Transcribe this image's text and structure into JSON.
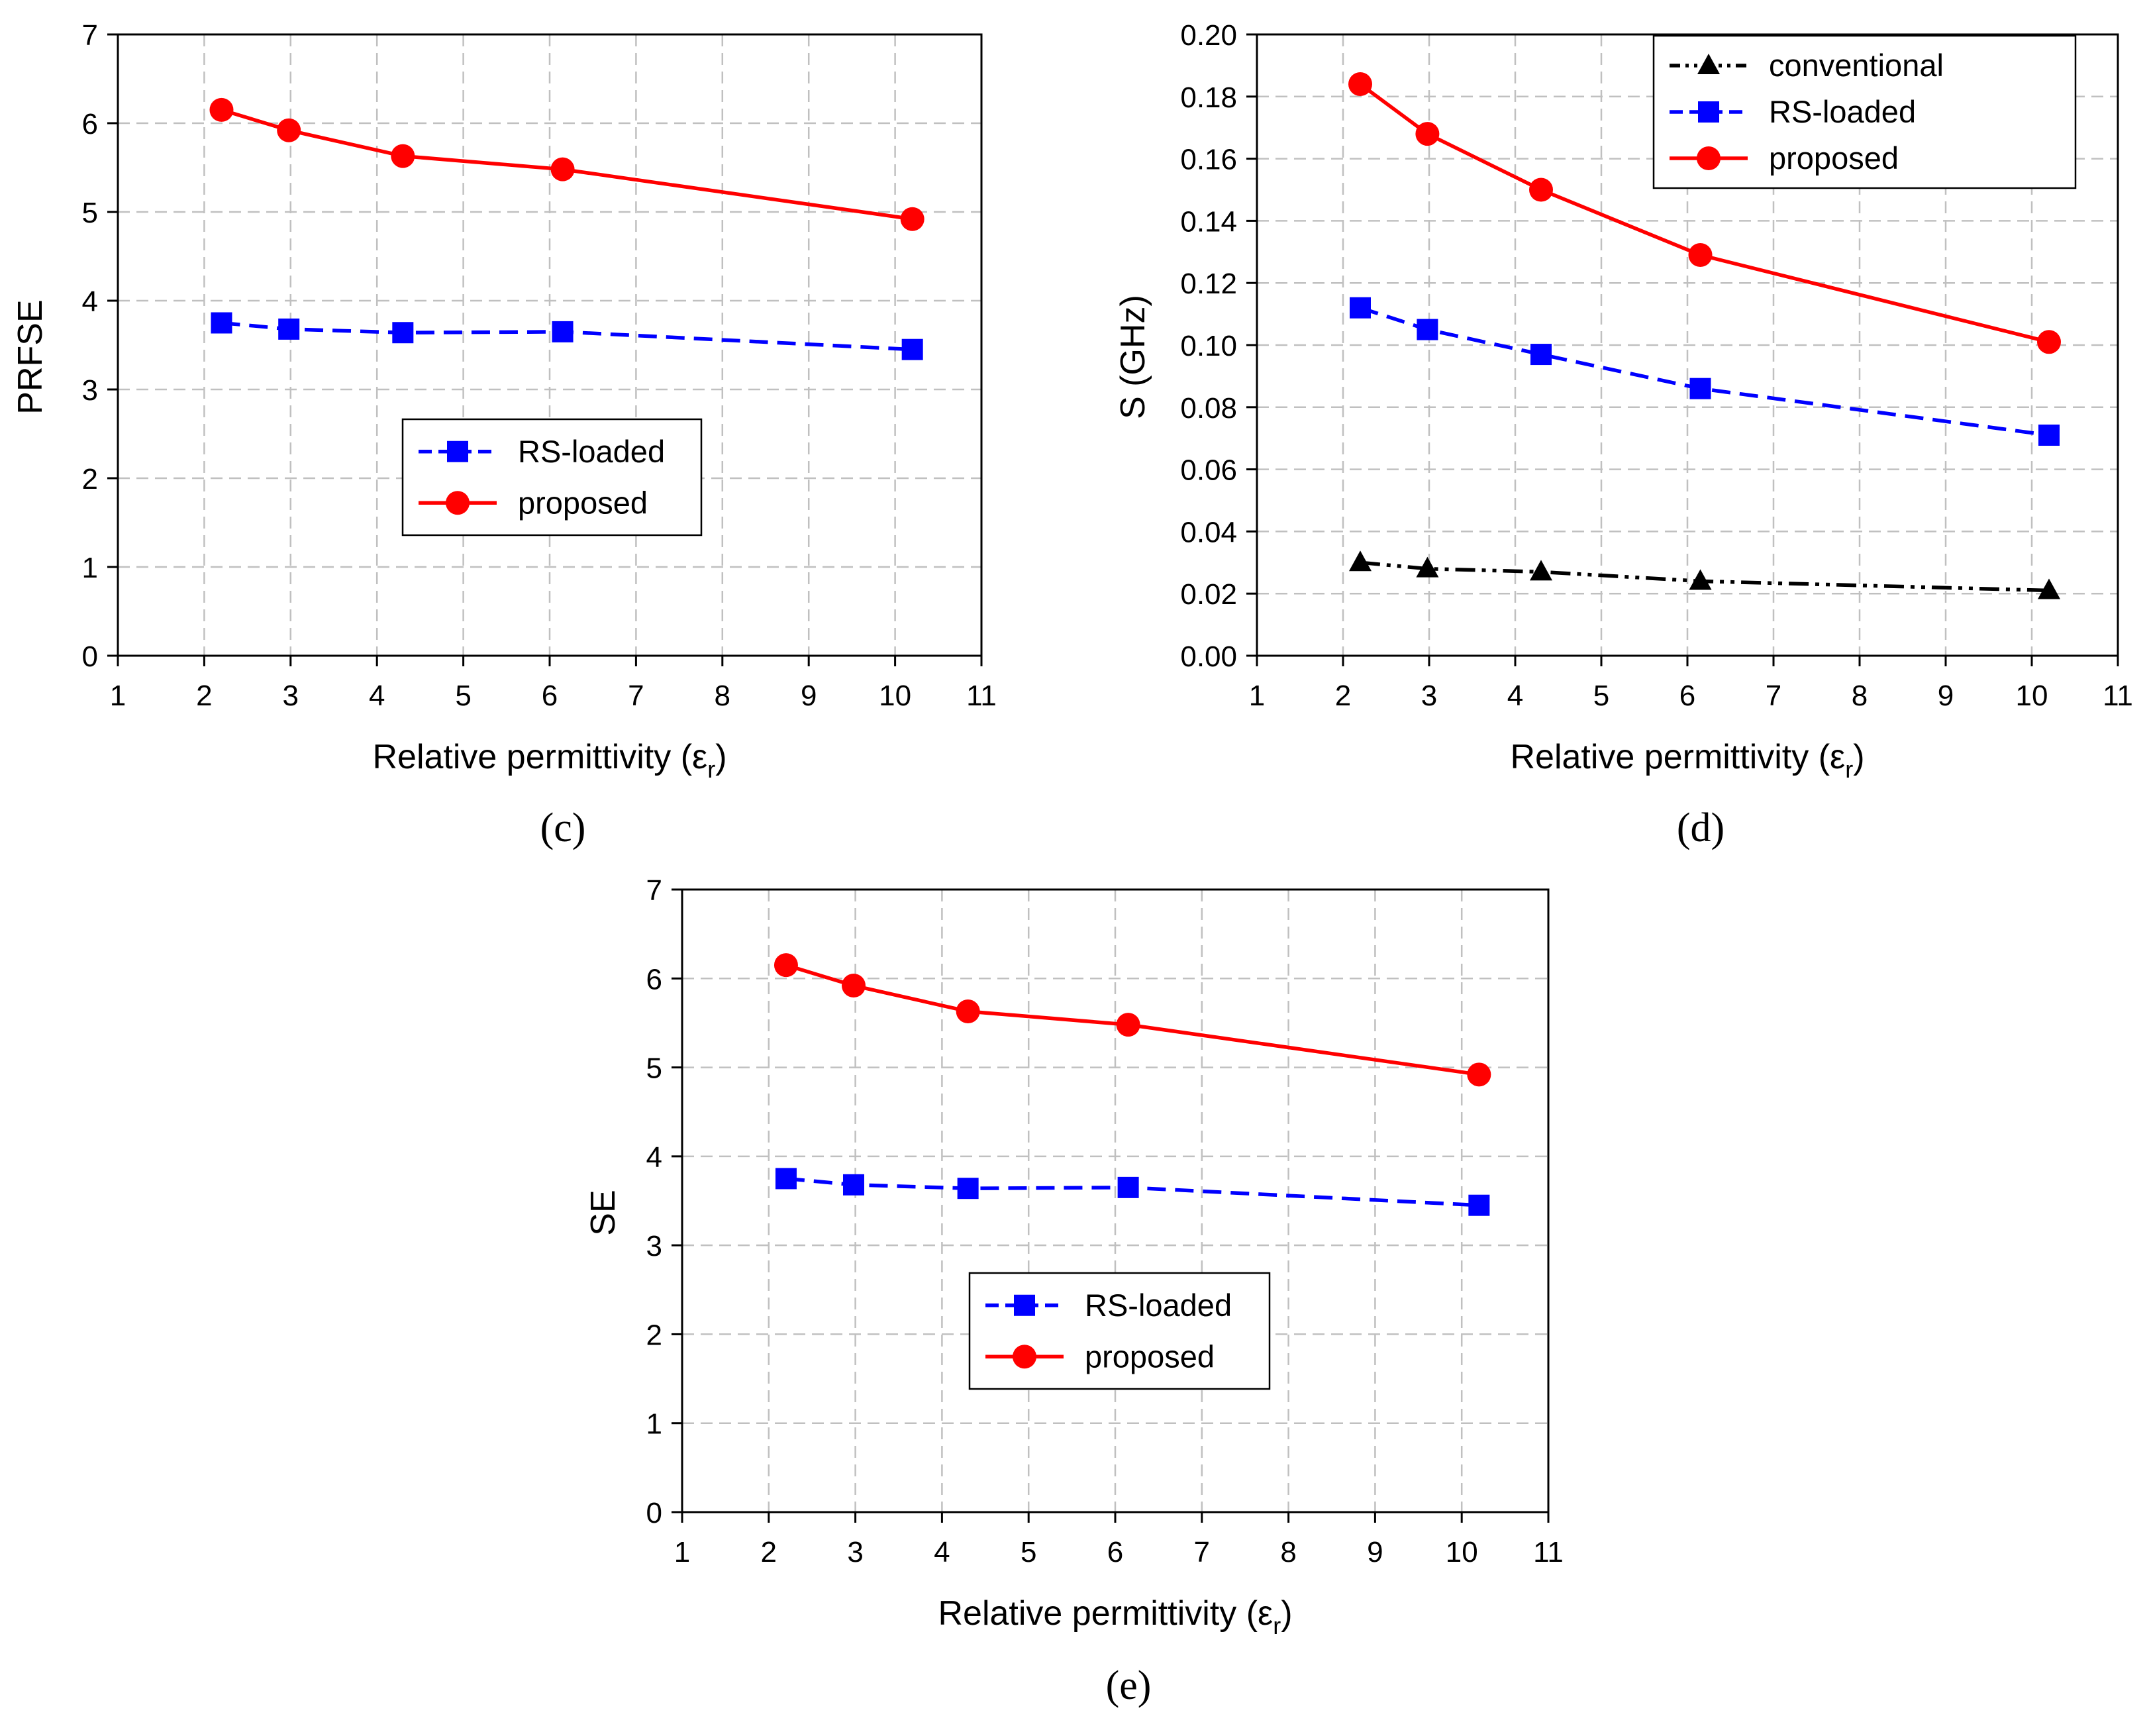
{
  "colors": {
    "rs_loaded": "#0000ff",
    "proposed": "#ff0000",
    "conventional": "#000000",
    "grid": "#c0c0c0"
  },
  "chart_data": [
    {
      "panel": "c",
      "panel_label": "(c)",
      "type": "line",
      "xlabel": "Relative permittivity (εr)",
      "xlabel_main": "Relative permittivity (ε",
      "xlabel_sub": "r",
      "xlabel_close": ")",
      "ylabel": "PRFSE",
      "xlim": [
        1,
        11
      ],
      "ylim": [
        0,
        7
      ],
      "xticks": [
        "1",
        "2",
        "3",
        "4",
        "5",
        "6",
        "7",
        "8",
        "9",
        "10",
        "11"
      ],
      "yticks": [
        "0",
        "1",
        "2",
        "3",
        "4",
        "5",
        "6",
        "7"
      ],
      "grid": true,
      "legend_position": "center",
      "series": [
        {
          "name": "RS-loaded",
          "style": "dashed",
          "marker": "square",
          "color": "#0000ff",
          "x": [
            2.2,
            2.98,
            4.3,
            6.15,
            10.2
          ],
          "y": [
            3.75,
            3.68,
            3.64,
            3.65,
            3.45
          ]
        },
        {
          "name": "proposed",
          "style": "solid",
          "marker": "circle",
          "color": "#ff0000",
          "x": [
            2.2,
            2.98,
            4.3,
            6.15,
            10.2
          ],
          "y": [
            6.15,
            5.92,
            5.63,
            5.48,
            4.92
          ]
        }
      ]
    },
    {
      "panel": "d",
      "panel_label": "(d)",
      "type": "line",
      "xlabel": "Relative permittivity (εr)",
      "xlabel_main": "Relative permittivity (ε",
      "xlabel_sub": "r",
      "xlabel_close": ")",
      "ylabel": "S (GHz)",
      "xlim": [
        1,
        11
      ],
      "ylim": [
        0,
        0.2
      ],
      "xticks": [
        "1",
        "2",
        "3",
        "4",
        "5",
        "6",
        "7",
        "8",
        "9",
        "10",
        "11"
      ],
      "yticks": [
        "0.00",
        "0.02",
        "0.04",
        "0.06",
        "0.08",
        "0.10",
        "0.12",
        "0.14",
        "0.16",
        "0.18",
        "0.20"
      ],
      "grid": true,
      "legend_position": "top-right",
      "series": [
        {
          "name": "conventional",
          "style": "dash-dot-dot",
          "marker": "triangle",
          "color": "#000000",
          "x": [
            2.2,
            2.98,
            4.3,
            6.15,
            10.2
          ],
          "y": [
            0.03,
            0.028,
            0.027,
            0.024,
            0.021
          ]
        },
        {
          "name": "RS-loaded",
          "style": "dashed",
          "marker": "square",
          "color": "#0000ff",
          "x": [
            2.2,
            2.98,
            4.3,
            6.15,
            10.2
          ],
          "y": [
            0.112,
            0.105,
            0.097,
            0.086,
            0.071
          ]
        },
        {
          "name": "proposed",
          "style": "solid",
          "marker": "circle",
          "color": "#ff0000",
          "x": [
            2.2,
            2.98,
            4.3,
            6.15,
            10.2
          ],
          "y": [
            0.184,
            0.168,
            0.15,
            0.129,
            0.101
          ]
        }
      ]
    },
    {
      "panel": "e",
      "panel_label": "(e)",
      "type": "line",
      "xlabel": "Relative permittivity (εr)",
      "xlabel_main": "Relative permittivity (ε",
      "xlabel_sub": "r",
      "xlabel_close": ")",
      "ylabel": "SE",
      "xlim": [
        1,
        11
      ],
      "ylim": [
        0,
        7
      ],
      "xticks": [
        "1",
        "2",
        "3",
        "4",
        "5",
        "6",
        "7",
        "8",
        "9",
        "10",
        "11"
      ],
      "yticks": [
        "0",
        "1",
        "2",
        "3",
        "4",
        "5",
        "6",
        "7"
      ],
      "grid": true,
      "legend_position": "center",
      "series": [
        {
          "name": "RS-loaded",
          "style": "dashed",
          "marker": "square",
          "color": "#0000ff",
          "x": [
            2.2,
            2.98,
            4.3,
            6.15,
            10.2
          ],
          "y": [
            3.75,
            3.68,
            3.64,
            3.65,
            3.45
          ]
        },
        {
          "name": "proposed",
          "style": "solid",
          "marker": "circle",
          "color": "#ff0000",
          "x": [
            2.2,
            2.98,
            4.3,
            6.15,
            10.2
          ],
          "y": [
            6.15,
            5.92,
            5.63,
            5.48,
            4.92
          ]
        }
      ]
    }
  ]
}
